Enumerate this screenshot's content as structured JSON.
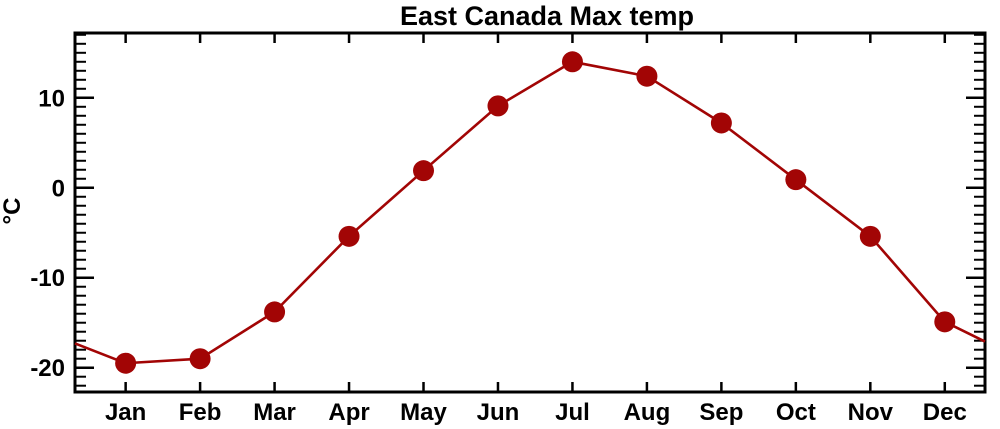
{
  "colors": {
    "series": "#a20505",
    "axis": "#000000",
    "text": "#000000",
    "background": "#ffffff"
  },
  "chart_data": {
    "type": "line",
    "title": "East Canada Max temp",
    "ylabel": "°C",
    "xlabel": "",
    "categories": [
      "Jan",
      "Feb",
      "Mar",
      "Apr",
      "May",
      "Jun",
      "Jul",
      "Aug",
      "Sep",
      "Oct",
      "Nov",
      "Dec"
    ],
    "values": [
      -19.5,
      -19.0,
      -13.8,
      -5.4,
      1.9,
      9.1,
      14.0,
      12.4,
      7.2,
      0.9,
      -5.4,
      -14.9
    ],
    "series_name": "East Canada max temperature",
    "yticks": [
      10,
      0,
      -10,
      -20
    ],
    "minor_tick_step": 1,
    "ylim": [
      -22.7,
      17.2
    ],
    "xlim_month_index": [
      0.32,
      12.54
    ],
    "edge_continuation": {
      "left_value": -17.3,
      "right_value": -17.1
    },
    "grid": false,
    "legend": "none",
    "marker": "filled-circle"
  }
}
